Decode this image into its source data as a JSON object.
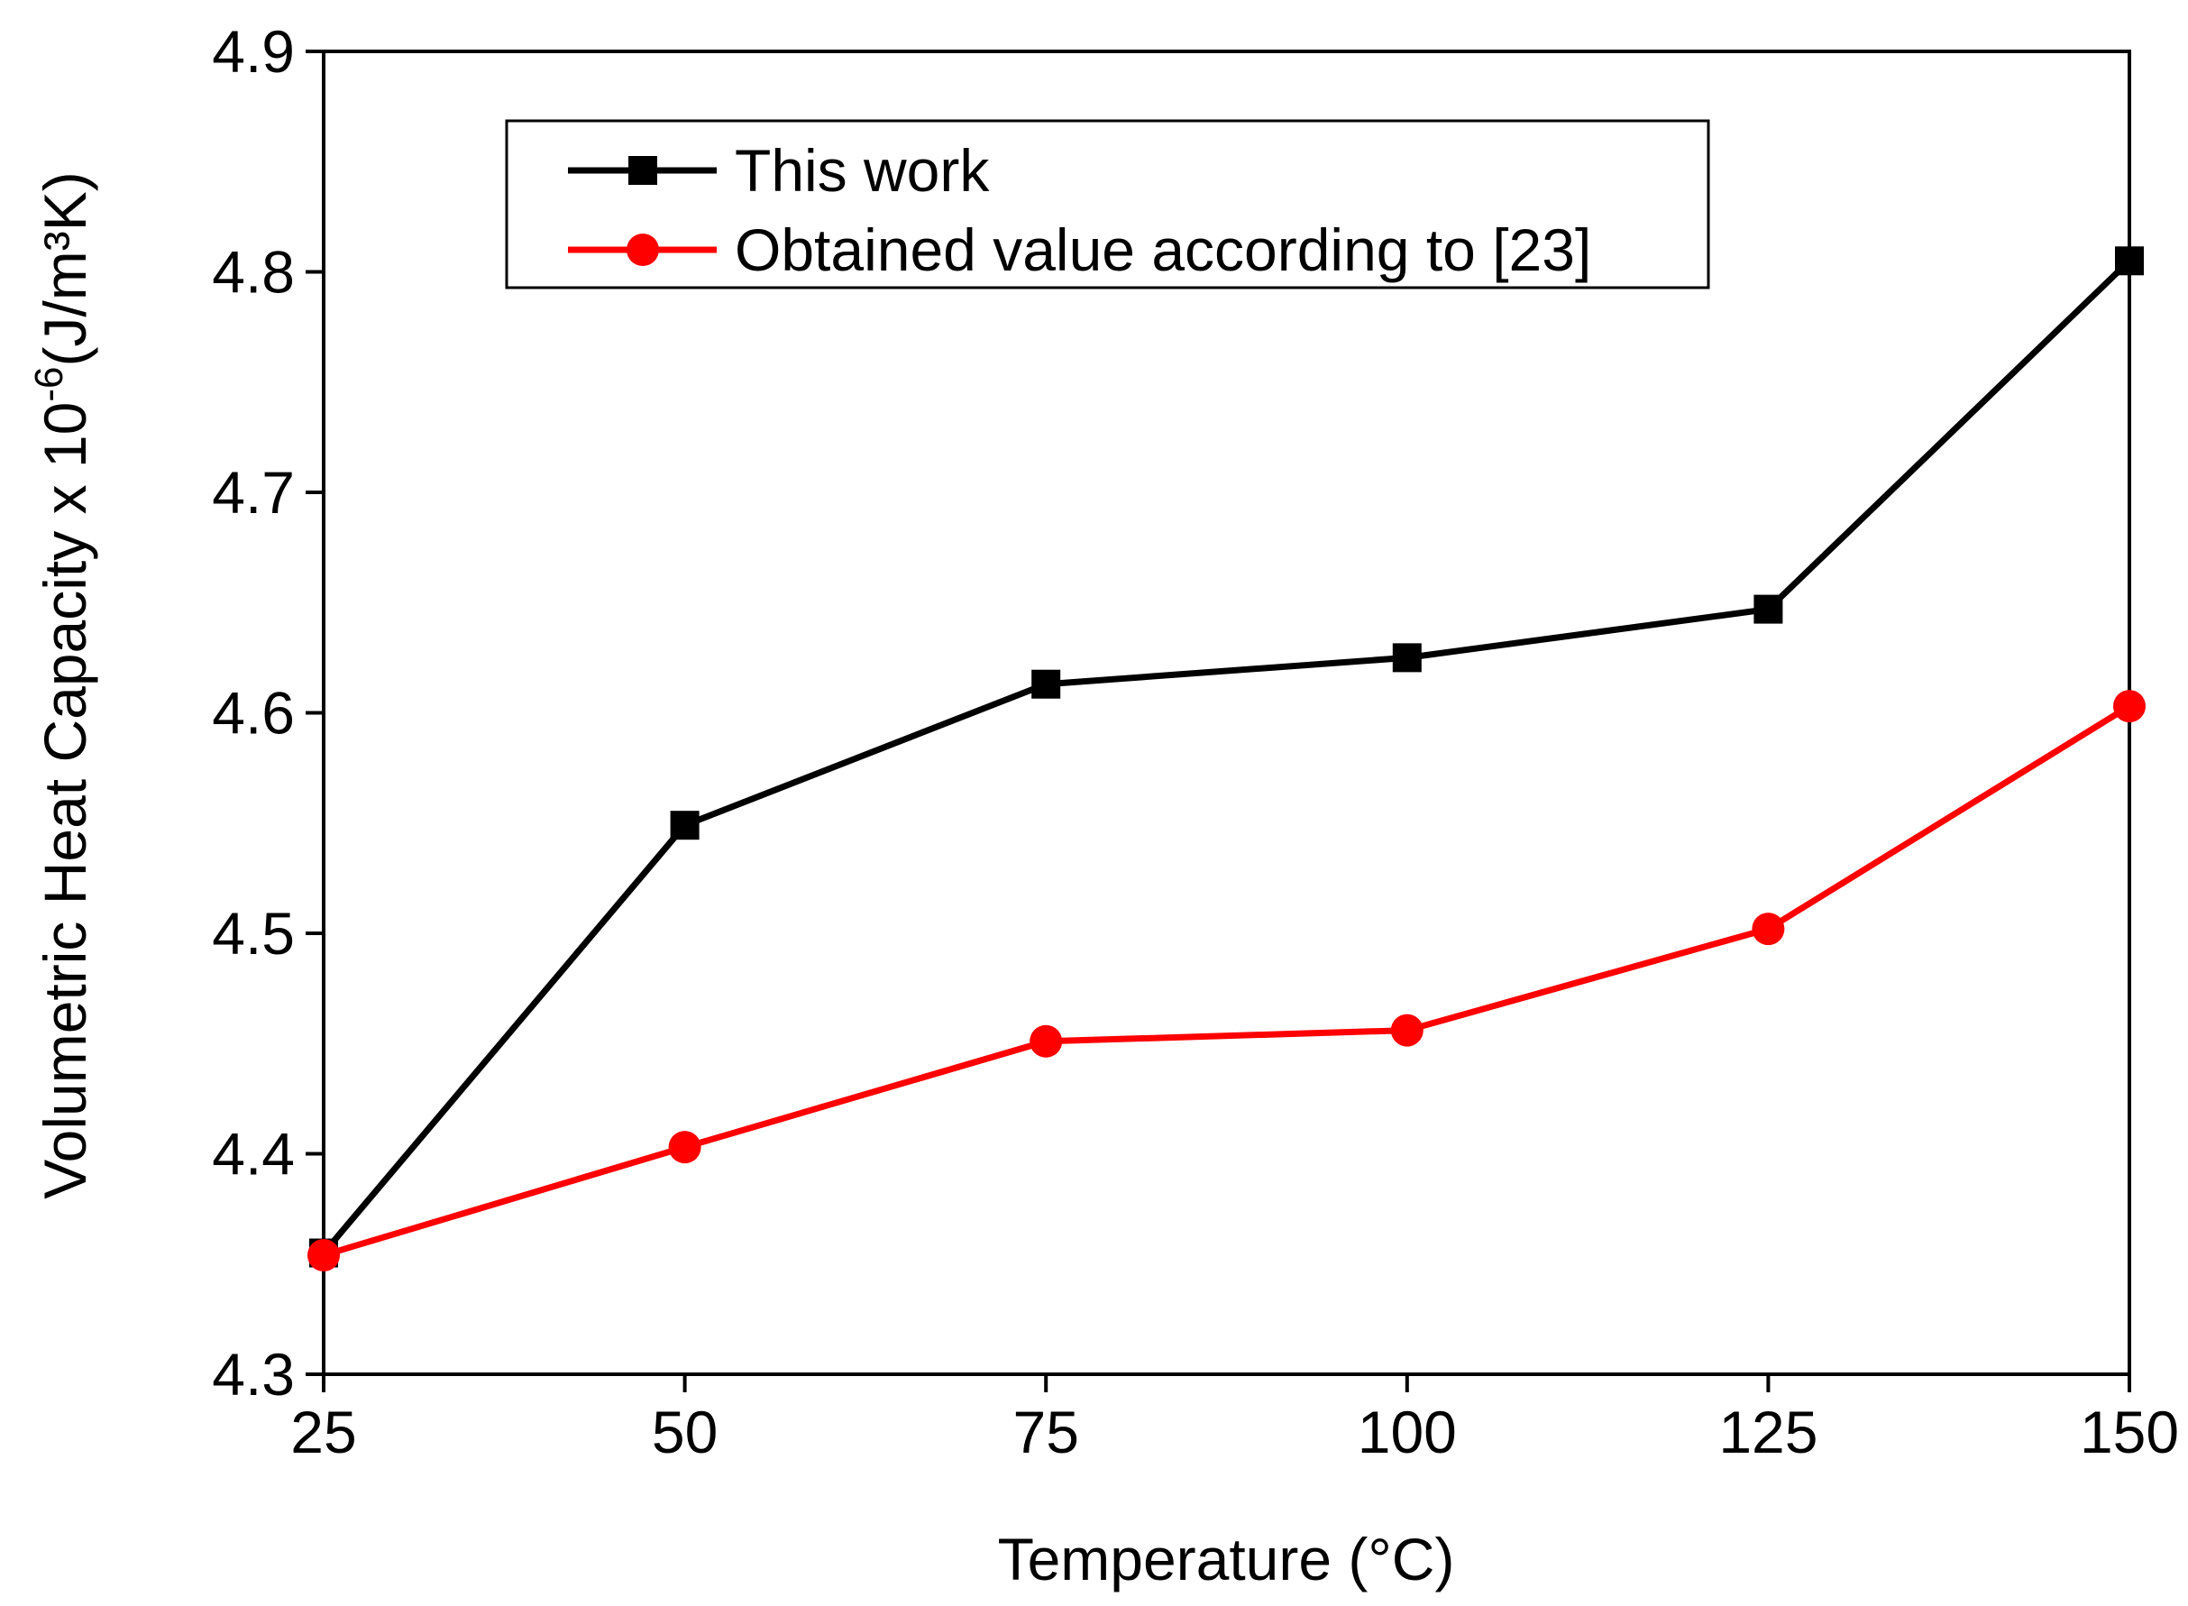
{
  "chart_data": {
    "type": "line",
    "title": "",
    "xlabel": "Temperature (°C)",
    "ylabel_main": "Volumetric Heat Capacity x 10",
    "ylabel_exponent": "-6",
    "ylabel_unit": "(J/m³K)",
    "x": [
      25,
      50,
      75,
      100,
      125,
      150
    ],
    "xlim": [
      25,
      150
    ],
    "ylim": [
      4.3,
      4.9
    ],
    "xticks": [
      25,
      50,
      75,
      100,
      125,
      150
    ],
    "yticks": [
      4.3,
      4.4,
      4.5,
      4.6,
      4.7,
      4.8,
      4.9
    ],
    "xtick_labels": [
      "25",
      "50",
      "75",
      "100",
      "125",
      "150"
    ],
    "ytick_labels": [
      "4.3",
      "4.4",
      "4.5",
      "4.6",
      "4.7",
      "4.8",
      "4.9"
    ],
    "grid": false,
    "legend_position": "top-left",
    "series": [
      {
        "name": "This work",
        "marker": "square",
        "color": "#000000",
        "values": [
          4.355,
          4.549,
          4.613,
          4.625,
          4.647,
          4.805
        ]
      },
      {
        "name": "Obtained value according to [23]",
        "marker": "circle",
        "color": "#ff0000",
        "values": [
          4.354,
          4.403,
          4.451,
          4.456,
          4.502,
          4.603
        ]
      }
    ]
  }
}
